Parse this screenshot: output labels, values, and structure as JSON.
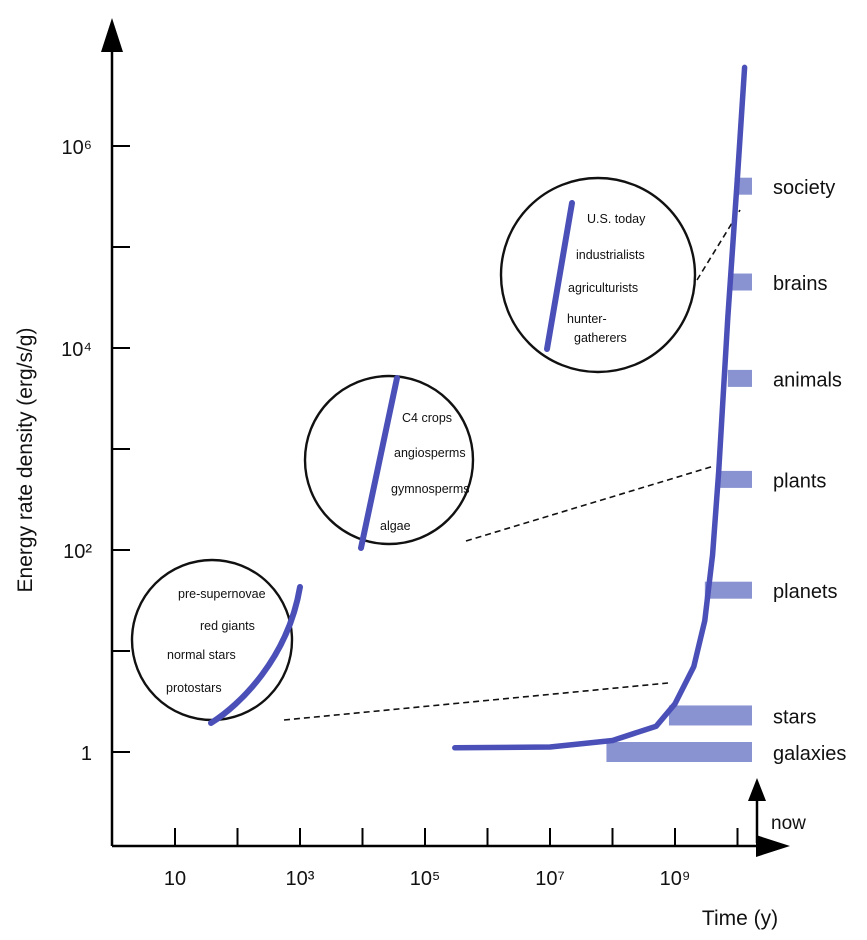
{
  "chart_data": {
    "type": "line",
    "title": "",
    "xlabel": "Time (y)",
    "ylabel": "Energy rate density (erg/s/g)",
    "x_scale": "log",
    "y_scale": "log",
    "x_tick_labels": [
      "10",
      "10³",
      "10⁵",
      "10⁷",
      "10⁹"
    ],
    "x_tick_values": [
      10,
      1000,
      100000,
      10000000,
      1000000000
    ],
    "y_tick_labels": [
      "1",
      "10²",
      "10⁴",
      "10⁶"
    ],
    "y_tick_values": [
      1,
      100,
      10000,
      1000000
    ],
    "now_label": "now",
    "series": [
      {
        "x": [
          300000,
          10000000,
          100000000,
          500000000,
          1000000000,
          2000000000,
          3000000000,
          4000000000,
          5000000000,
          7000000000,
          10000000000,
          13000000000
        ],
        "y": [
          1.1,
          1.12,
          1.3,
          1.8,
          3,
          7,
          20,
          90,
          600,
          20000,
          500000,
          6000000
        ]
      }
    ],
    "categories": [
      {
        "label": "galaxies",
        "x_start": 80000000,
        "y": 1
      },
      {
        "label": "stars",
        "x_start": 800000000,
        "y": 2.3
      },
      {
        "label": "planets",
        "x_start": 3000000000,
        "y": 40
      },
      {
        "label": "plants",
        "x_start": 5000000000,
        "y": 500
      },
      {
        "label": "animals",
        "x_start": 7000000000,
        "y": 5000
      },
      {
        "label": "brains",
        "x_start": 8000000000,
        "y": 45000
      },
      {
        "label": "society",
        "x_start": 9000000000,
        "y": 400000
      }
    ],
    "insets": [
      {
        "labels": [
          "pre-supernovae",
          "red giants",
          "normal stars",
          "protostars"
        ]
      },
      {
        "labels": [
          "C4 crops",
          "angiosperms",
          "gymnosperms",
          "algae"
        ]
      },
      {
        "labels": [
          "U.S. today",
          "industrialists",
          "agriculturists",
          "hunter-",
          "gatherers"
        ]
      }
    ],
    "colors": {
      "line": "#4a50b8",
      "bar": "#8a93d2"
    }
  }
}
